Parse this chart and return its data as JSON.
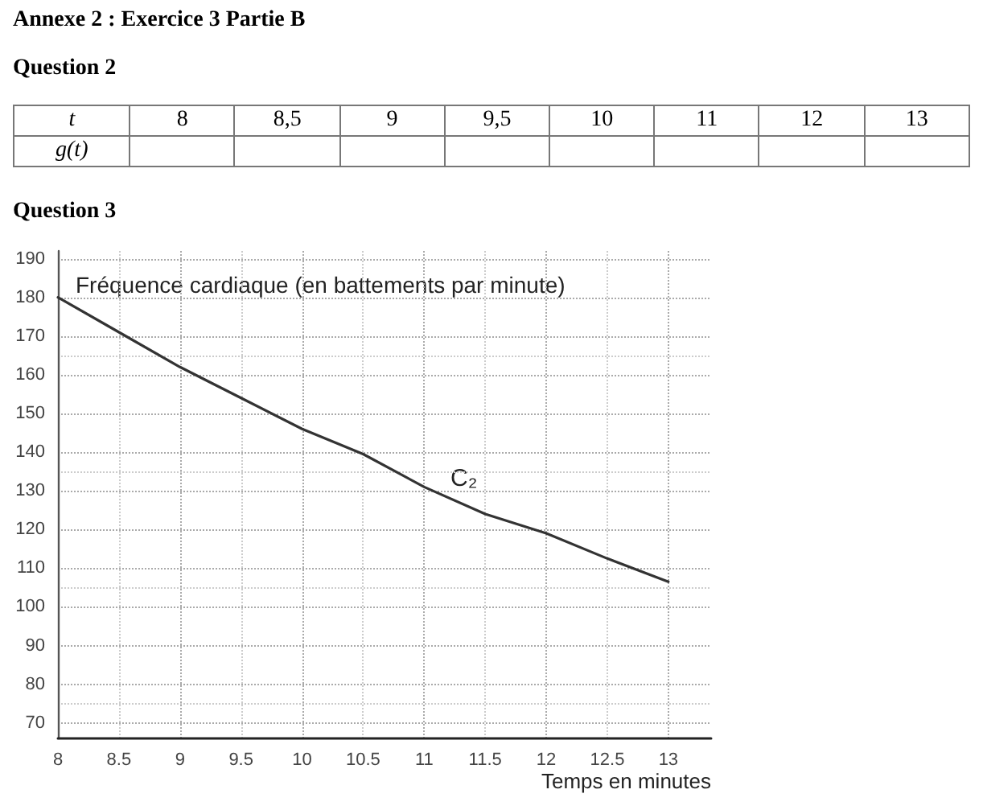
{
  "chart_data": {
    "type": "line",
    "title": "Annexe 2 : Exercice 3 Partie B",
    "xlabel": "Temps en minutes",
    "ylabel": "Fréquence cardiaque (en battements par minute)",
    "annotations": [
      "Question 2",
      "t",
      "8",
      "8,5",
      "9",
      "9,5",
      "10",
      "11",
      "12",
      "13",
      "g(t)",
      "Question 3",
      "C₂"
    ],
    "x": [
      8,
      8.5,
      9,
      9.5,
      10,
      10.5,
      11,
      11.5,
      12,
      12.5,
      13
    ],
    "series": [
      {
        "color": "#333333",
        "values": [
          180,
          171,
          162,
          154,
          146,
          139.5,
          131,
          124,
          119,
          112.5,
          106.5
        ]
      }
    ],
    "xlim": [
      8,
      13.35
    ],
    "xticks": [
      8,
      8.5,
      9,
      9.5,
      10,
      10.5,
      11,
      11.5,
      12,
      12.5,
      13
    ],
    "ylim": [
      66,
      192
    ],
    "yticks": [
      70,
      80,
      90,
      100,
      110,
      120,
      130,
      140,
      150,
      160,
      170,
      180,
      190
    ],
    "grid": true,
    "marker": "none",
    "line_style": "solid"
  }
}
